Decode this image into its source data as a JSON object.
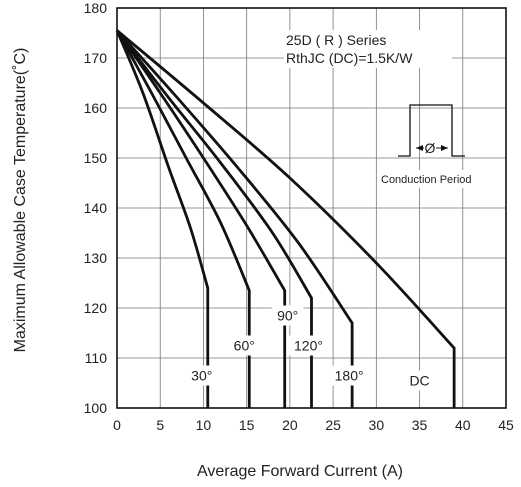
{
  "chart_data": {
    "type": "line",
    "xlabel": "Average Forward Current (A)",
    "ylabel": "Maximum Allowable Case Temperature(˚C)",
    "xlim": [
      0,
      45
    ],
    "ylim": [
      100,
      180
    ],
    "xticks": [
      0,
      5,
      10,
      15,
      20,
      25,
      30,
      35,
      40,
      45
    ],
    "yticks": [
      100,
      110,
      120,
      130,
      140,
      150,
      160,
      170,
      180
    ],
    "grid": true,
    "annotation_lines": [
      "25D ( R )  Series",
      "RthJC (DC)=1.5K/W"
    ],
    "inset_symbol": "Ø",
    "inset_caption": "Conduction Period",
    "series": [
      {
        "name": "30°",
        "label": "30°",
        "x": [
          0,
          3,
          6,
          8.5,
          10.5,
          10.5
        ],
        "y": [
          175.5,
          163,
          148,
          136,
          124,
          100
        ]
      },
      {
        "name": "60°",
        "label": "60°",
        "x": [
          0,
          4,
          8,
          12,
          15.3,
          15.3
        ],
        "y": [
          175.5,
          163,
          150,
          137,
          123.5,
          100
        ]
      },
      {
        "name": "90°",
        "label": "90°",
        "x": [
          0,
          5,
          10,
          15,
          19.4,
          19.4
        ],
        "y": [
          175.5,
          163,
          150,
          136.5,
          123.5,
          100
        ]
      },
      {
        "name": "120°",
        "label": "120°",
        "x": [
          0,
          6,
          12,
          18,
          22.5,
          22.5
        ],
        "y": [
          175.5,
          162,
          149,
          135,
          122,
          100
        ]
      },
      {
        "name": "180°",
        "label": "180°",
        "x": [
          0,
          7,
          14,
          21,
          27.2,
          27.2
        ],
        "y": [
          175.5,
          162,
          148,
          133,
          117,
          100
        ]
      },
      {
        "name": "DC",
        "label": "DC",
        "x": [
          0,
          10,
          20,
          30,
          39,
          39
        ],
        "y": [
          175.5,
          161,
          146,
          129,
          112,
          100
        ]
      }
    ]
  }
}
